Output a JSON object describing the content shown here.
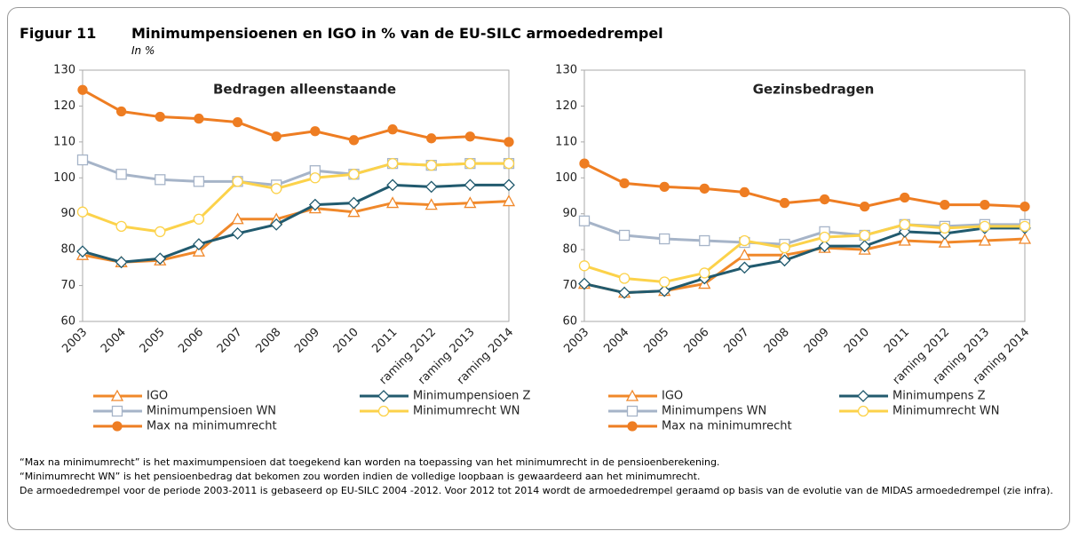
{
  "figure": {
    "label": "Figuur 11",
    "title": "Minimumpensioenen en IGO in % van de EU-SILC armoededrempel",
    "subtitle": "In %"
  },
  "notes": [
    "“Max na minimumrecht” is het maximumpensioen dat toegekend kan worden na toepassing van het minimumrecht in de pensioenberekening.",
    "“Minimumrecht WN” is het pensioenbedrag dat bekomen zou worden indien de volledige loopbaan is gewaardeerd aan het minimumrecht.",
    "De armoededrempel voor de periode 2003-2011 is gebaseerd op EU-SILC 2004 -2012. Voor 2012 tot 2014 wordt de armoededrempel geraamd op basis van de evolutie van de MIDAS armoededrempel (zie infra)."
  ],
  "chart_data": [
    {
      "type": "line",
      "title": "Bedragen alleenstaande",
      "categories": [
        "2003",
        "2004",
        "2005",
        "2006",
        "2007",
        "2008",
        "2009",
        "2010",
        "2011",
        "raming 2012",
        "raming 2013",
        "raming 2014"
      ],
      "ylim": [
        60,
        130
      ],
      "yticks": [
        60,
        70,
        80,
        90,
        100,
        110,
        120,
        130
      ],
      "grid": false,
      "series": [
        {
          "name": "IGO",
          "color": "#f0882a",
          "marker": "triangle",
          "values": [
            78.5,
            76.5,
            77,
            79.5,
            88.5,
            88.5,
            91.5,
            90.5,
            93,
            92.5,
            93,
            93.5
          ]
        },
        {
          "name": "Minimumpensioen Z",
          "color": "#215a6e",
          "marker": "diamond",
          "values": [
            79.5,
            76.5,
            77.5,
            81.5,
            84.5,
            87,
            92.5,
            93,
            98,
            97.5,
            98,
            98
          ]
        },
        {
          "name": "Minimumpensioen WN",
          "color": "#a6b4c8",
          "marker": "square",
          "values": [
            105,
            101,
            99.5,
            99,
            99,
            98,
            102,
            101,
            104,
            103.5,
            104,
            104
          ]
        },
        {
          "name": "Minimumrecht WN",
          "color": "#fcd24a",
          "marker": "circle",
          "values": [
            90.5,
            86.5,
            85,
            88.5,
            99,
            97,
            100,
            101,
            104,
            103.5,
            104,
            104
          ]
        },
        {
          "name": "Max na minimumrecht",
          "color": "#ee7d22",
          "marker": "dot",
          "values": [
            124.5,
            118.5,
            117,
            116.5,
            115.5,
            111.5,
            113,
            110.5,
            113.5,
            111,
            111.5,
            110
          ]
        }
      ]
    },
    {
      "type": "line",
      "title": "Gezinsbedragen",
      "categories": [
        "2003",
        "2004",
        "2005",
        "2006",
        "2007",
        "2008",
        "2009",
        "2010",
        "2011",
        "raming 2012",
        "raming 2013",
        "raming 2014"
      ],
      "ylim": [
        60,
        130
      ],
      "yticks": [
        60,
        70,
        80,
        90,
        100,
        110,
        120,
        130
      ],
      "grid": false,
      "series": [
        {
          "name": "IGO",
          "color": "#f0882a",
          "marker": "triangle",
          "values": [
            70.5,
            68,
            68.5,
            70.5,
            78.5,
            78.5,
            80.5,
            80,
            82.5,
            82,
            82.5,
            83
          ]
        },
        {
          "name": "Minimumpens Z",
          "color": "#215a6e",
          "marker": "diamond",
          "values": [
            70.5,
            68,
            68.5,
            72,
            75,
            77,
            81,
            81,
            85,
            84.5,
            86,
            86
          ]
        },
        {
          "name": "Minimumpens WN",
          "color": "#a6b4c8",
          "marker": "square",
          "values": [
            88,
            84,
            83,
            82.5,
            82,
            81.5,
            85,
            84,
            87,
            86.5,
            87,
            87
          ]
        },
        {
          "name": "Minimumrecht WN",
          "color": "#fcd24a",
          "marker": "circle",
          "values": [
            75.5,
            72,
            71,
            73.5,
            82.5,
            80.5,
            83.5,
            84,
            87,
            86,
            86.5,
            86.5
          ]
        },
        {
          "name": "Max na minimumrecht",
          "color": "#ee7d22",
          "marker": "dot",
          "values": [
            104,
            98.5,
            97.5,
            97,
            96,
            93,
            94,
            92,
            94.5,
            92.5,
            92.5,
            92
          ]
        }
      ]
    }
  ]
}
